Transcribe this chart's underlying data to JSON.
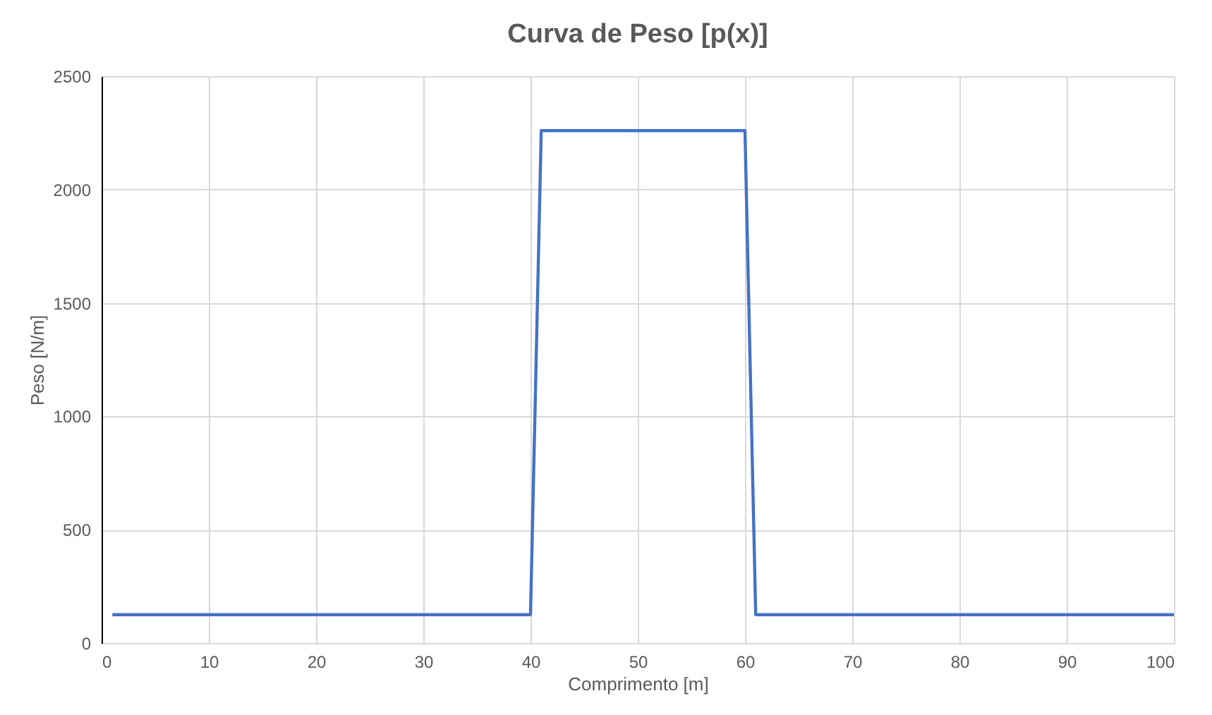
{
  "chart_data": {
    "type": "line",
    "title": "Curva de Peso [p(x)]",
    "xlabel": "Comprimento [m]",
    "ylabel": "Peso [N/m]",
    "x": [
      1,
      40,
      41,
      60,
      61,
      100
    ],
    "series": [
      {
        "color": "#4472c4",
        "values": [
          125,
          125,
          2260,
          2260,
          125,
          125
        ]
      }
    ],
    "xlim": [
      0,
      100
    ],
    "xticks": [
      0,
      10,
      20,
      30,
      40,
      50,
      60,
      70,
      80,
      90,
      100
    ],
    "ylim": [
      0,
      2500
    ],
    "yticks": [
      0,
      500,
      1000,
      1500,
      2000,
      2500
    ],
    "grid": true,
    "marker": "none",
    "line_style": "solid"
  }
}
